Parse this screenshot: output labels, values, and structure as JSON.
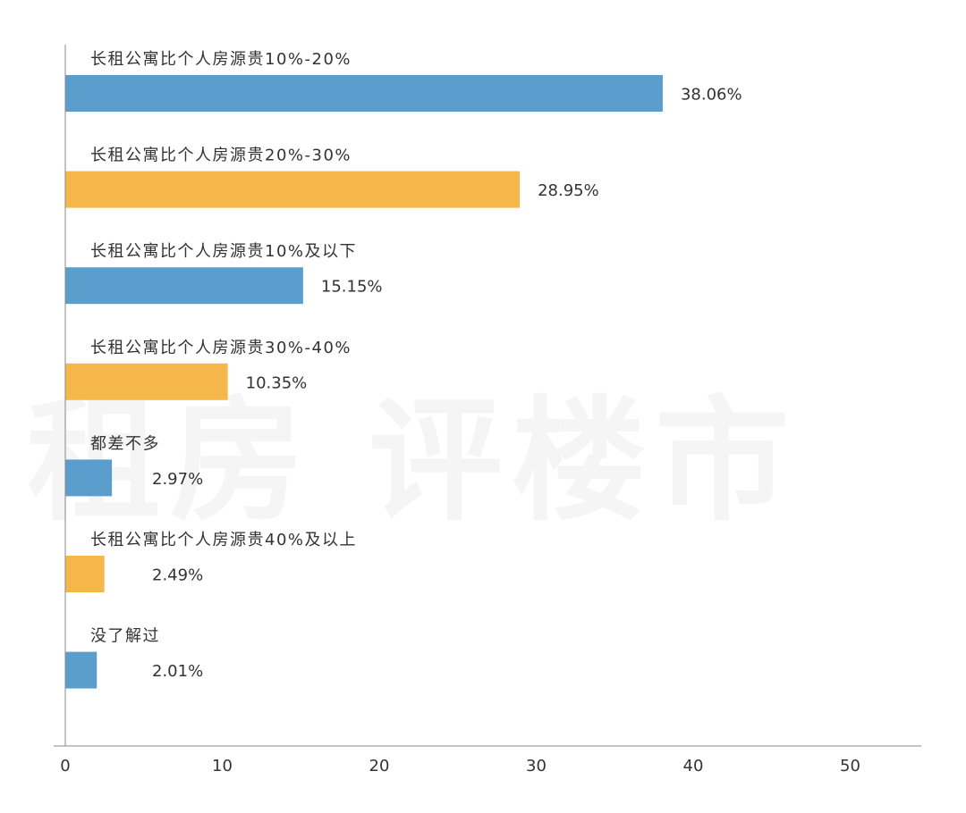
{
  "watermark": "租房 评楼市",
  "colors": {
    "blue": "#5b9ecd",
    "orange": "#f5b74a",
    "axis": "#888888",
    "text": "#333333"
  },
  "chart_data": {
    "type": "bar",
    "orientation": "horizontal",
    "title": "",
    "xlabel": "",
    "ylabel": "",
    "xlim": [
      0,
      55
    ],
    "xticks": [
      0,
      10,
      20,
      30,
      40,
      50
    ],
    "grid": false,
    "legend": "none",
    "categories": [
      "长租公寓比个人房源贵10%-20%",
      "长租公寓比个人房源贵20%-30%",
      "长租公寓比个人房源贵10%及以下",
      "长租公寓比个人房源贵30%-40%",
      "都差不多",
      "长租公寓比个人房源贵40%及以上",
      "没了解过"
    ],
    "values": [
      38.06,
      28.95,
      15.15,
      10.35,
      2.97,
      2.49,
      2.01
    ],
    "value_labels": [
      "38.06%",
      "28.95%",
      "15.15%",
      "10.35%",
      "2.97%",
      "2.49%",
      "2.01%"
    ],
    "bar_colors": [
      "blue",
      "orange",
      "blue",
      "orange",
      "blue",
      "orange",
      "blue"
    ]
  }
}
